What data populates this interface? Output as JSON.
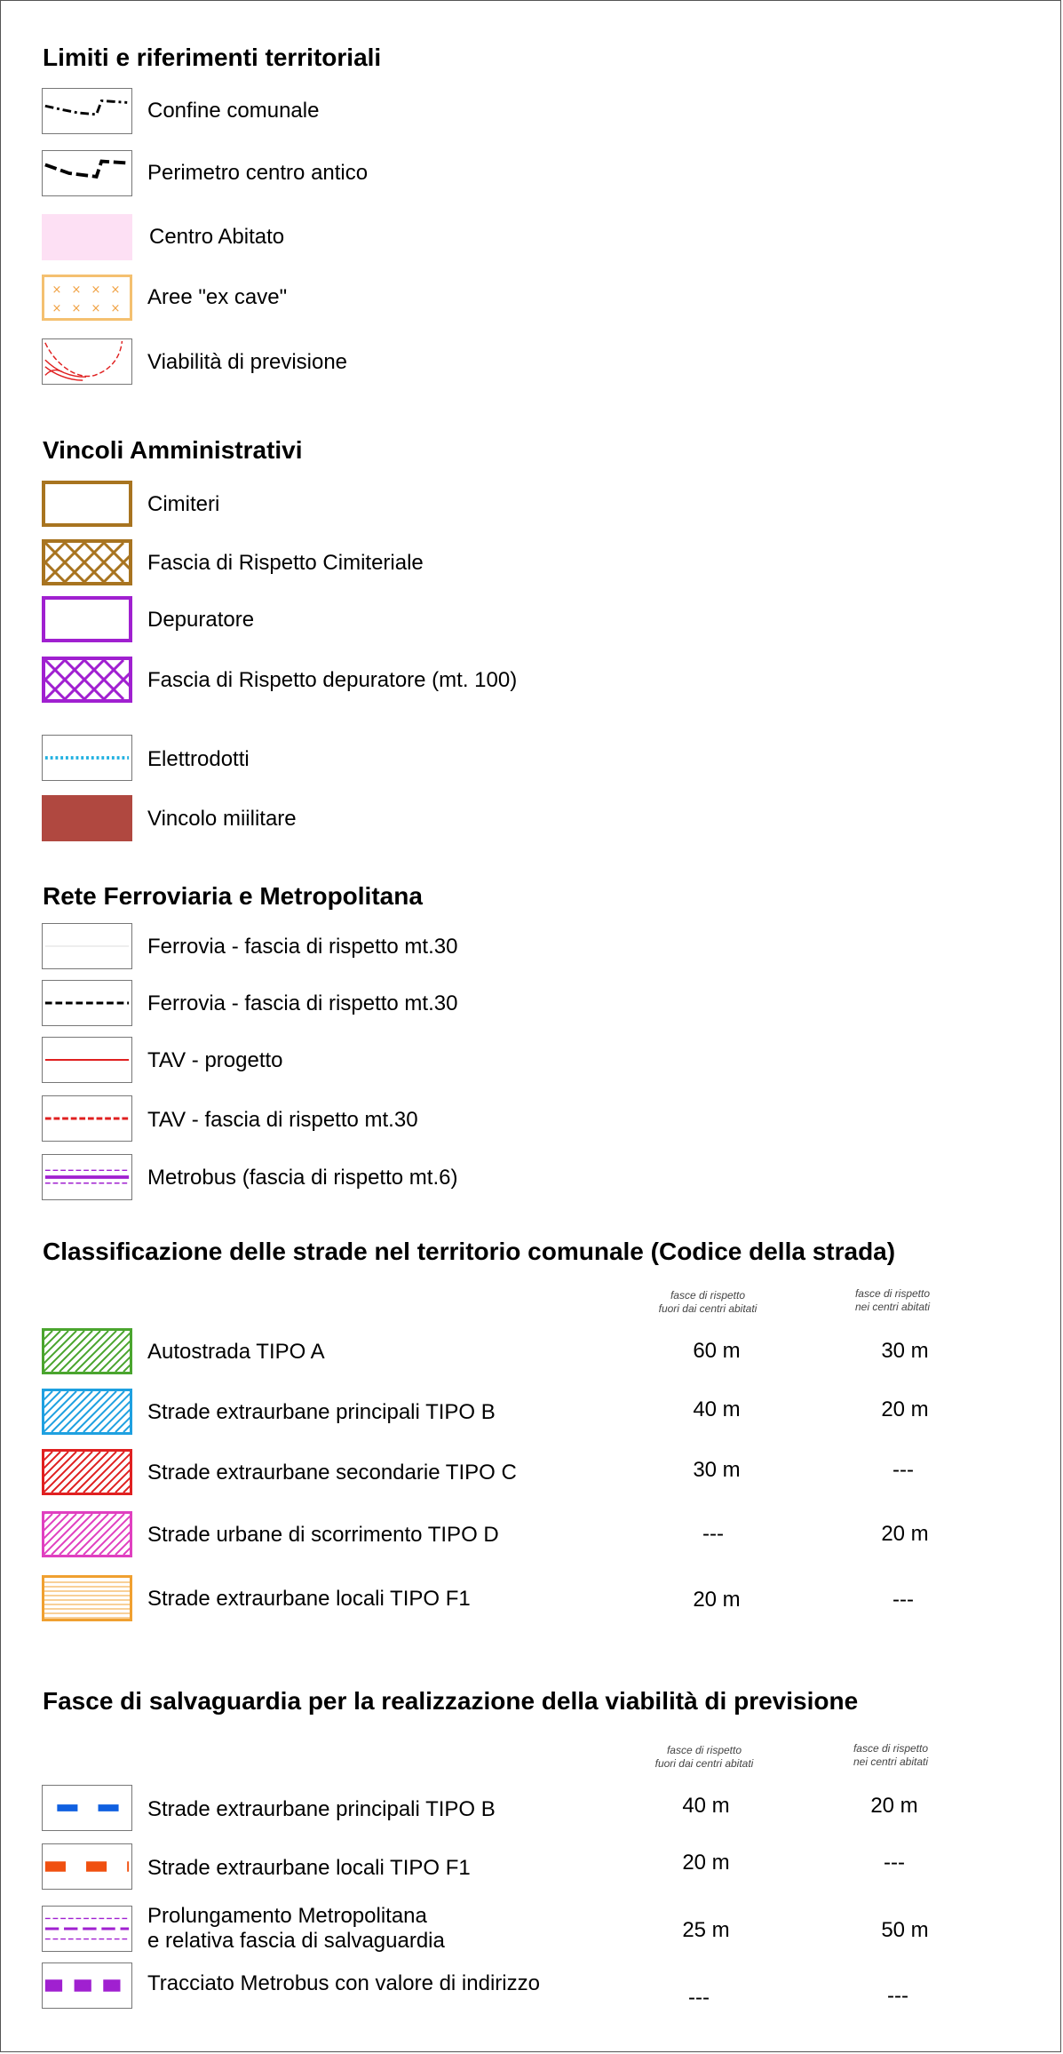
{
  "sections": {
    "limiti": {
      "title": "Limiti e riferimenti territoriali",
      "items": [
        "Confine comunale",
        "Perimetro centro antico",
        "Centro Abitato",
        "Aree \"ex cave\"",
        "Viabilità di previsione"
      ]
    },
    "vincoli": {
      "title": "Vincoli Amministrativi",
      "items": [
        "Cimiteri",
        "Fascia di Rispetto Cimiteriale",
        "Depuratore",
        "Fascia di Rispetto depuratore (mt. 100)",
        "Elettrodotti",
        "Vincolo miilitare"
      ]
    },
    "rete": {
      "title": "Rete Ferroviaria e Metropolitana",
      "items": [
        "Ferrovia - fascia di rispetto mt.30",
        "Ferrovia - fascia di rispetto mt.30",
        "TAV - progetto",
        "TAV - fascia di rispetto mt.30",
        "Metrobus (fascia di rispetto mt.6)"
      ]
    },
    "strade": {
      "title": "Classificazione delle strade nel territorio comunale (Codice della strada)",
      "col1": [
        "fasce di rispetto",
        "fuori dai centri abitati"
      ],
      "col2": [
        "fasce di rispetto",
        "nei centri abitati"
      ],
      "rows": [
        {
          "label": "Autostrada TIPO A",
          "fuori": "60 m",
          "nei": "30 m",
          "color": "#4aa52e"
        },
        {
          "label": "Strade extraurbane principali TIPO B",
          "fuori": "40 m",
          "nei": "20 m",
          "color": "#1ea0e0"
        },
        {
          "label": "Strade extraurbane secondarie TIPO C",
          "fuori": "30 m",
          "nei": "---",
          "color": "#e02020"
        },
        {
          "label": "Strade urbane di scorrimento TIPO D",
          "fuori": "---",
          "nei": "20 m",
          "color": "#e040c0"
        },
        {
          "label": "Strade extraurbane locali TIPO F1",
          "fuori": "20 m",
          "nei": "---",
          "color": "#f0a030"
        }
      ]
    },
    "fasce": {
      "title": "Fasce di salvaguardia per la realizzazione della viabilità di previsione",
      "col1": [
        "fasce di rispetto",
        "fuori dai centri abitati"
      ],
      "col2": [
        "fasce di rispetto",
        "nei centri abitati"
      ],
      "rows": [
        {
          "label": "Strade extraurbane principali TIPO B",
          "fuori": "40 m",
          "nei": "20 m"
        },
        {
          "label": "Strade extraurbane locali TIPO F1",
          "fuori": "20 m",
          "nei": "---"
        },
        {
          "label": [
            "Prolungamento Metropolitana",
            "e relativa fascia di salvaguardia"
          ],
          "fuori": "25 m",
          "nei": "50 m"
        },
        {
          "label": "Tracciato Metrobus con valore di indirizzo",
          "fuori": "---",
          "nei": "---"
        }
      ]
    }
  },
  "colors": {
    "pink_fill": "#fde0f4",
    "ex_cave": "#f4c070",
    "cimiteri": "#a87420",
    "depuratore": "#a020d0",
    "elettrodotti": "#20b0e0",
    "militare": "#b04840",
    "tav": "#e02020",
    "metrobus": "#a020d0",
    "tipo_b_dash": "#1060e0",
    "tipo_f1_dash": "#f05010"
  }
}
